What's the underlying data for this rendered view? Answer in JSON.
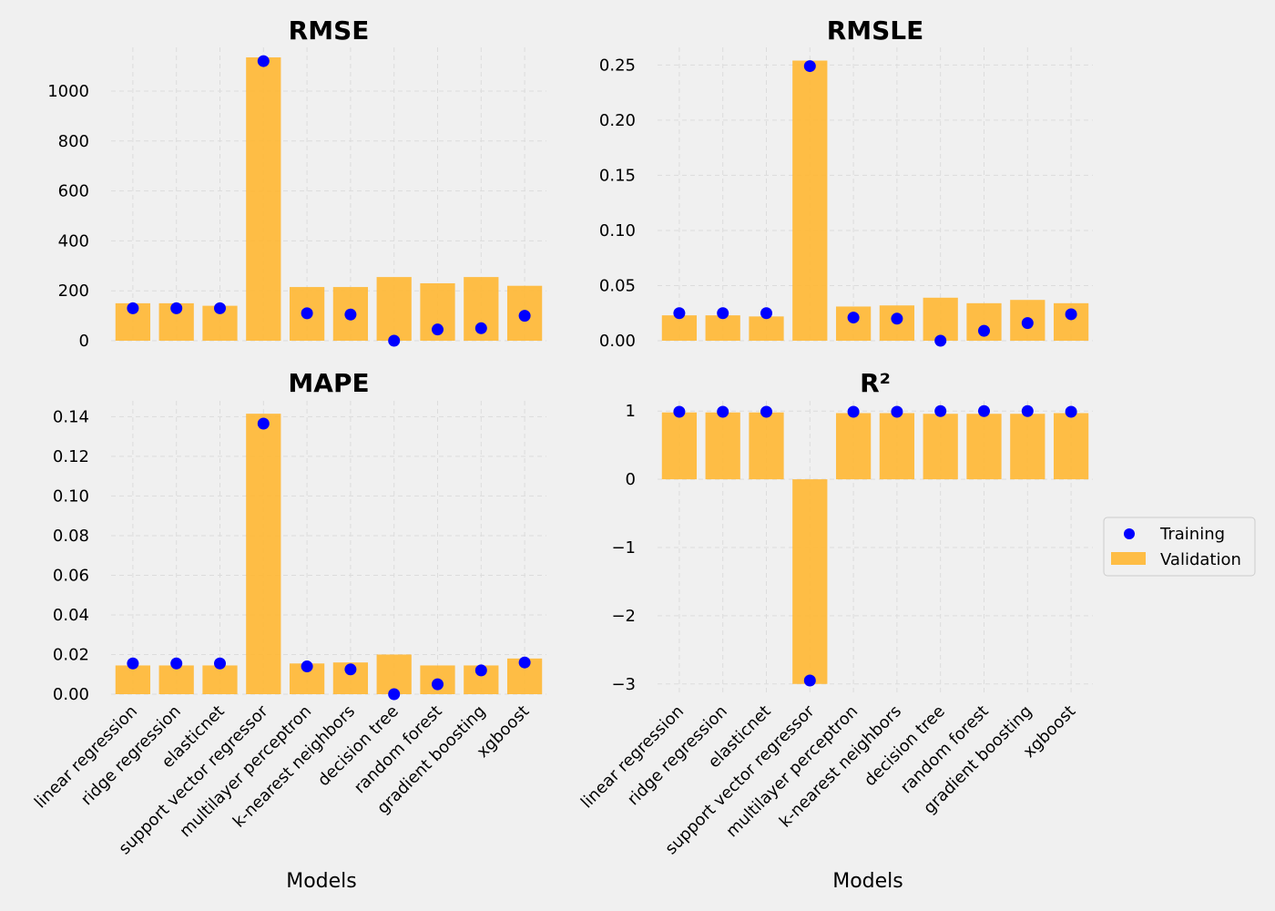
{
  "chart_data": {
    "type": "bar",
    "xlabel": "Models",
    "categories": [
      "linear regression",
      "ridge regression",
      "elasticnet",
      "support vector regressor",
      "multilayer perceptron",
      "k-nearest neighbors",
      "decision tree",
      "random forest",
      "gradient boosting",
      "xgboost"
    ],
    "legend": {
      "placement": "right",
      "entries": [
        "Training",
        "Validation"
      ]
    },
    "colors": {
      "training": "#0000ff",
      "validation": "#ffb732",
      "background": "#f0f0f0"
    },
    "grid": true,
    "panels": [
      {
        "title": "RMSE",
        "ylim": [
          0,
          1175
        ],
        "yticks": [
          0,
          200,
          400,
          600,
          800,
          1000
        ],
        "ytick_labels": [
          "0",
          "200",
          "400",
          "600",
          "800",
          "1000"
        ],
        "series": [
          {
            "name": "Validation",
            "type": "bar",
            "values": [
              150,
              150,
              140,
              1135,
              215,
              215,
              255,
              230,
              255,
              220
            ]
          },
          {
            "name": "Training",
            "type": "scatter",
            "values": [
              130,
              130,
              130,
              1120,
              110,
              105,
              0,
              45,
              50,
              100
            ]
          }
        ]
      },
      {
        "title": "RMSLE",
        "ylim": [
          0,
          0.266
        ],
        "yticks": [
          0,
          0.05,
          0.1,
          0.15,
          0.2,
          0.25
        ],
        "ytick_labels": [
          "0.00",
          "0.05",
          "0.10",
          "0.15",
          "0.20",
          "0.25"
        ],
        "series": [
          {
            "name": "Validation",
            "type": "bar",
            "values": [
              0.023,
              0.023,
              0.022,
              0.254,
              0.031,
              0.032,
              0.039,
              0.034,
              0.037,
              0.034
            ]
          },
          {
            "name": "Training",
            "type": "scatter",
            "values": [
              0.025,
              0.025,
              0.025,
              0.249,
              0.021,
              0.02,
              0.0,
              0.009,
              0.016,
              0.024
            ]
          }
        ]
      },
      {
        "title": "MAPE",
        "ylim": [
          0,
          0.148
        ],
        "yticks": [
          0,
          0.02,
          0.04,
          0.06,
          0.08,
          0.1,
          0.12,
          0.14
        ],
        "ytick_labels": [
          "0.00",
          "0.02",
          "0.04",
          "0.06",
          "0.08",
          "0.10",
          "0.12",
          "0.14"
        ],
        "series": [
          {
            "name": "Validation",
            "type": "bar",
            "values": [
              0.0145,
              0.0145,
              0.0145,
              0.1415,
              0.0155,
              0.016,
              0.02,
              0.0145,
              0.0145,
              0.018
            ]
          },
          {
            "name": "Training",
            "type": "scatter",
            "values": [
              0.0155,
              0.0155,
              0.0155,
              0.1365,
              0.014,
              0.0125,
              0.0,
              0.005,
              0.012,
              0.016
            ]
          }
        ]
      },
      {
        "title": "R²",
        "ylim": [
          -3.15,
          1.15
        ],
        "yticks": [
          -3,
          -2,
          -1,
          0,
          1
        ],
        "ytick_labels": [
          "−3",
          "−2",
          "−1",
          "0",
          "1"
        ],
        "series": [
          {
            "name": "Validation",
            "type": "bar",
            "values": [
              0.98,
              0.98,
              0.98,
              -3.0,
              0.97,
              0.97,
              0.96,
              0.96,
              0.96,
              0.97
            ]
          },
          {
            "name": "Training",
            "type": "scatter",
            "values": [
              0.99,
              0.99,
              0.99,
              -2.95,
              0.99,
              0.99,
              1.0,
              1.0,
              1.0,
              0.99
            ]
          }
        ]
      }
    ]
  }
}
